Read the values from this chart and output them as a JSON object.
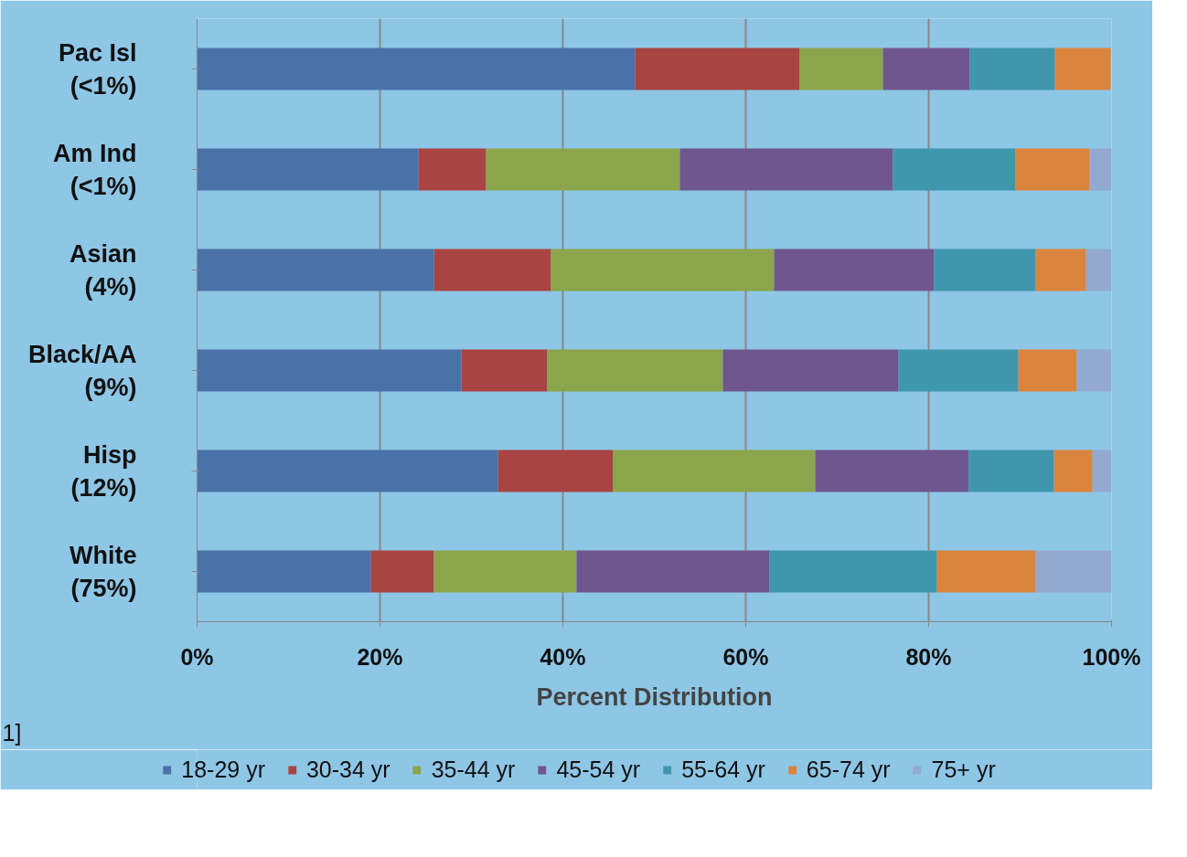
{
  "chart_data": {
    "type": "bar",
    "orientation": "horizontal",
    "stacked": true,
    "xlabel": "Percent Distribution",
    "categories": [
      "Pac Isl\n(<1%)",
      "Am Ind\n(<1%)",
      "Asian\n(4%)",
      "Black/AA\n(9%)",
      "Hisp\n(12%)",
      "White\n(75%)"
    ],
    "series": [
      {
        "name": "18-29 yr",
        "color": "#4a72a8",
        "values": [
          47.9,
          24.2,
          25.9,
          28.9,
          32.9,
          19.0
        ]
      },
      {
        "name": "30-34 yr",
        "color": "#a94442",
        "values": [
          18.0,
          7.4,
          12.8,
          9.4,
          12.6,
          6.9
        ]
      },
      {
        "name": "35-44 yr",
        "color": "#8aa54b",
        "values": [
          9.1,
          21.2,
          24.4,
          19.2,
          22.1,
          15.6
        ]
      },
      {
        "name": "45-54 yr",
        "color": "#70568f",
        "values": [
          9.5,
          23.3,
          17.5,
          19.2,
          16.8,
          21.1
        ]
      },
      {
        "name": "55-64 yr",
        "color": "#3f97ae",
        "values": [
          9.3,
          13.4,
          11.1,
          13.1,
          9.3,
          18.3
        ]
      },
      {
        "name": "65-74 yr",
        "color": "#db843d",
        "values": [
          6.1,
          8.1,
          5.5,
          6.4,
          4.2,
          10.8
        ]
      },
      {
        "name": "75+ yr",
        "color": "#93a9d0",
        "values": [
          0,
          2.4,
          2.8,
          3.8,
          2.1,
          8.3
        ]
      }
    ],
    "xlim": [
      0,
      100
    ],
    "xticks": [
      {
        "value": 0,
        "label": "0%"
      },
      {
        "value": 20,
        "label": "20%"
      },
      {
        "value": 40,
        "label": "40%"
      },
      {
        "value": 60,
        "label": "60%"
      },
      {
        "value": 80,
        "label": "80%"
      },
      {
        "value": 100,
        "label": "100%"
      }
    ],
    "grid": "x",
    "legend": "bottom",
    "annotations": [
      "1]"
    ]
  }
}
